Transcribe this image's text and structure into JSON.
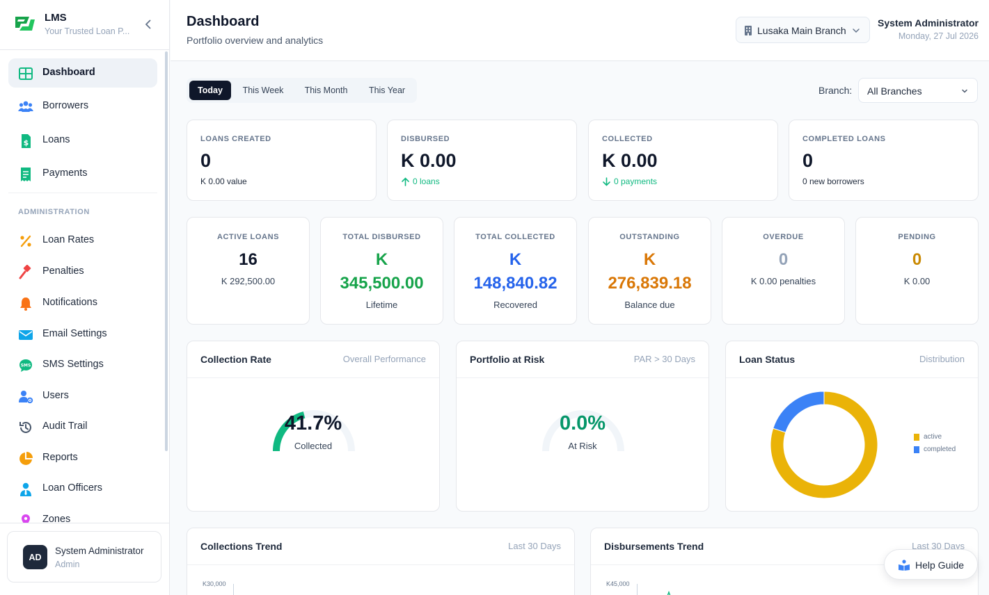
{
  "app": {
    "name": "LMS",
    "tagline": "Your Trusted Loan P...",
    "brand_color": "#16a34a"
  },
  "sidebar": {
    "items": [
      {
        "label": "Dashboard",
        "icon": "dashboard-grid-icon",
        "active": true
      },
      {
        "label": "Borrowers",
        "icon": "users-group-icon"
      },
      {
        "label": "Loans",
        "icon": "dollar-document-icon"
      },
      {
        "label": "Payments",
        "icon": "receipt-icon"
      }
    ],
    "section_label": "ADMINISTRATION",
    "admin_items": [
      {
        "label": "Loan Rates",
        "icon": "percent-icon"
      },
      {
        "label": "Penalties",
        "icon": "gavel-icon"
      },
      {
        "label": "Notifications",
        "icon": "bell-icon"
      },
      {
        "label": "Email Settings",
        "icon": "envelope-icon"
      },
      {
        "label": "SMS Settings",
        "icon": "sms-bubble-icon"
      },
      {
        "label": "Users",
        "icon": "user-gear-icon"
      },
      {
        "label": "Audit Trail",
        "icon": "history-icon"
      },
      {
        "label": "Reports",
        "icon": "pie-chart-icon"
      },
      {
        "label": "Loan Officers",
        "icon": "user-tie-icon"
      },
      {
        "label": "Zones",
        "icon": "map-pin-icon"
      }
    ],
    "user": {
      "initials": "AD",
      "name": "System Administrator",
      "role": "Admin"
    }
  },
  "header": {
    "title": "Dashboard",
    "subtitle": "Portfolio overview and analytics",
    "branch": "Lusaka Main Branch",
    "user_name": "System Administrator",
    "date": "Monday, 27 Jul 2026"
  },
  "filters": {
    "tabs": [
      "Today",
      "This Week",
      "This Month",
      "This Year"
    ],
    "active_tab": "Today",
    "branch_label": "Branch:",
    "branch_value": "All Branches"
  },
  "period_stats": [
    {
      "label": "LOANS CREATED",
      "value": "0",
      "sub": "K 0.00 value",
      "trend": "none"
    },
    {
      "label": "DISBURSED",
      "value": "K 0.00",
      "sub": "0 loans",
      "trend": "up"
    },
    {
      "label": "COLLECTED",
      "value": "K 0.00",
      "sub": "0 payments",
      "trend": "down"
    },
    {
      "label": "COMPLETED LOANS",
      "value": "0",
      "sub": "0 new borrowers",
      "trend": "none"
    }
  ],
  "portfolio_stats": [
    {
      "label": "ACTIVE LOANS",
      "value": "16",
      "sub": "K 292,500.00",
      "color": "#0f172a"
    },
    {
      "label": "TOTAL DISBURSED",
      "currency": "K",
      "value": "345,500.00",
      "sub": "Lifetime",
      "color": "#16a34a"
    },
    {
      "label": "TOTAL COLLECTED",
      "currency": "K",
      "value": "148,840.82",
      "sub": "Recovered",
      "color": "#2563eb"
    },
    {
      "label": "OUTSTANDING",
      "currency": "K",
      "value": "276,839.18",
      "sub": "Balance due",
      "color": "#d97706"
    },
    {
      "label": "OVERDUE",
      "value": "0",
      "sub": "K 0.00 penalties",
      "color": "#94a3b8"
    },
    {
      "label": "PENDING",
      "value": "0",
      "sub": "K 0.00",
      "color": "#ca8a04"
    }
  ],
  "panels": {
    "collection_rate": {
      "title": "Collection Rate",
      "hint": "Overall Performance",
      "value": "41.7%",
      "percent": 41.7,
      "sub": "Collected",
      "color": "#10b981"
    },
    "par": {
      "title": "Portfolio at Risk",
      "hint": "PAR > 30 Days",
      "value": "0.0%",
      "percent": 0,
      "sub": "At Risk",
      "color": "#059669"
    },
    "loan_status": {
      "title": "Loan Status",
      "hint": "Distribution"
    }
  },
  "chart_data": {
    "type": "pie",
    "categories": [
      "active",
      "completed"
    ],
    "values": [
      16,
      4
    ],
    "colors": [
      "#eab308",
      "#3b82f6"
    ],
    "legend": "right"
  },
  "trends": {
    "collections": {
      "title": "Collections Trend",
      "hint": "Last 30 Days",
      "y_top_label": "K30,000"
    },
    "disbursements": {
      "title": "Disbursements Trend",
      "hint": "Last 30 Days",
      "y_top_label": "K45,000"
    }
  },
  "help": {
    "label": "Help Guide"
  }
}
